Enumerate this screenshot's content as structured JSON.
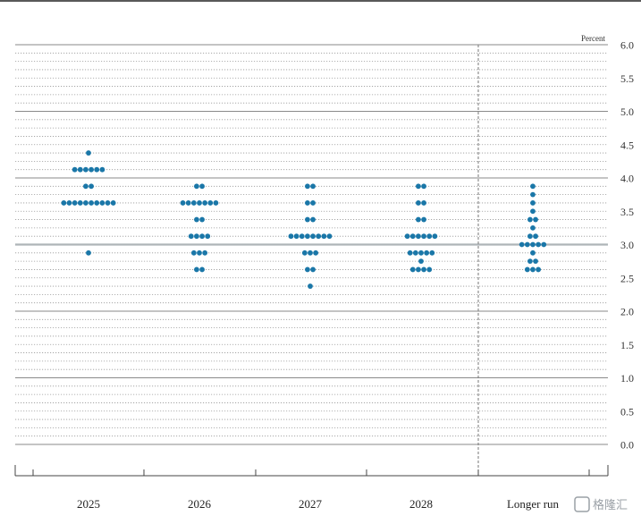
{
  "chart_data": {
    "type": "scatter",
    "subtype": "dot-plot",
    "y_unit_label": "Percent",
    "ylim": [
      0.0,
      6.0
    ],
    "y_ticks": [
      "0.0",
      "0.5",
      "1.0",
      "1.5",
      "2.0",
      "2.5",
      "3.0",
      "3.5",
      "4.0",
      "4.5",
      "5.0",
      "5.5",
      "6.0"
    ],
    "grid": "dotted minor lines every 0.125, solid major lines every 1.0",
    "highlight_line": 3.0,
    "categories": [
      "2025",
      "2026",
      "2027",
      "2028",
      "Longer run"
    ],
    "dot_color": "#1a77a8",
    "groups": [
      {
        "category": "2025",
        "levels": [
          {
            "y": 4.375,
            "count": 1
          },
          {
            "y": 4.125,
            "count": 6
          },
          {
            "y": 3.875,
            "count": 2
          },
          {
            "y": 3.625,
            "count": 10
          },
          {
            "y": 2.875,
            "count": 1
          }
        ]
      },
      {
        "category": "2026",
        "levels": [
          {
            "y": 3.875,
            "count": 2
          },
          {
            "y": 3.625,
            "count": 7
          },
          {
            "y": 3.375,
            "count": 2
          },
          {
            "y": 3.125,
            "count": 4
          },
          {
            "y": 2.875,
            "count": 3
          },
          {
            "y": 2.625,
            "count": 2
          }
        ]
      },
      {
        "category": "2027",
        "levels": [
          {
            "y": 3.875,
            "count": 2
          },
          {
            "y": 3.625,
            "count": 2
          },
          {
            "y": 3.375,
            "count": 2
          },
          {
            "y": 3.125,
            "count": 8
          },
          {
            "y": 2.875,
            "count": 3
          },
          {
            "y": 2.625,
            "count": 2
          },
          {
            "y": 2.375,
            "count": 1
          }
        ]
      },
      {
        "category": "2028",
        "levels": [
          {
            "y": 3.875,
            "count": 2
          },
          {
            "y": 3.625,
            "count": 2
          },
          {
            "y": 3.375,
            "count": 2
          },
          {
            "y": 3.125,
            "count": 6
          },
          {
            "y": 2.875,
            "count": 5
          },
          {
            "y": 2.75,
            "count": 1
          },
          {
            "y": 2.625,
            "count": 4
          }
        ]
      },
      {
        "category": "Longer run",
        "levels": [
          {
            "y": 3.875,
            "count": 1
          },
          {
            "y": 3.75,
            "count": 1
          },
          {
            "y": 3.625,
            "count": 1
          },
          {
            "y": 3.5,
            "count": 1
          },
          {
            "y": 3.375,
            "count": 2
          },
          {
            "y": 3.25,
            "count": 1
          },
          {
            "y": 3.125,
            "count": 2
          },
          {
            "y": 3.0,
            "count": 5
          },
          {
            "y": 2.875,
            "count": 1
          },
          {
            "y": 2.75,
            "count": 2
          },
          {
            "y": 2.625,
            "count": 3
          }
        ]
      }
    ]
  },
  "watermark": {
    "text": "格隆汇"
  }
}
